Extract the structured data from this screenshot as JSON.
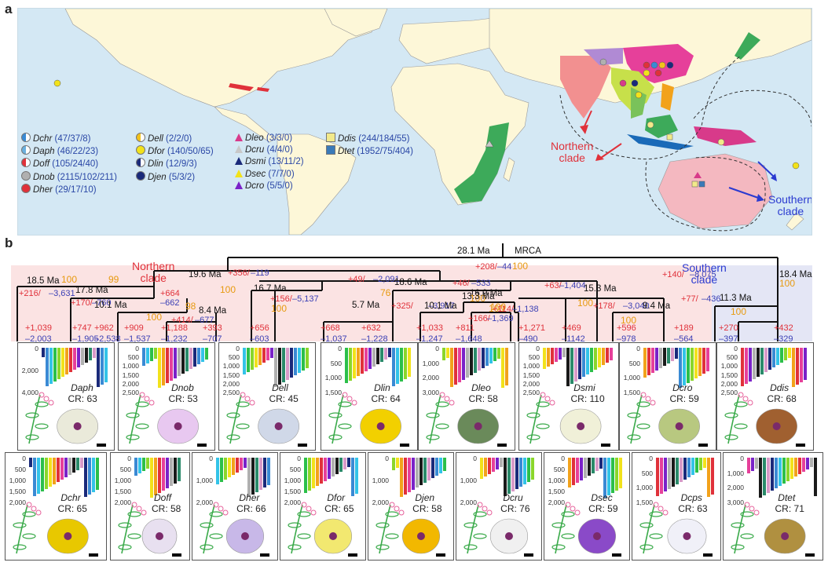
{
  "panels": {
    "a": "a",
    "b": "b"
  },
  "map_labels": {
    "northern": "Northern\nclade",
    "southern": "Southern\nclade"
  },
  "legend": [
    {
      "code": "Dchr",
      "counts": "(47/37/8)",
      "color": "#3a8ad4",
      "shape": "half"
    },
    {
      "code": "Daph",
      "counts": "(46/22/23)",
      "color": "#6ab0de",
      "shape": "half"
    },
    {
      "code": "Doff",
      "counts": "(105/24/40)",
      "color": "#e0313a",
      "shape": "half"
    },
    {
      "code": "Dnob",
      "counts": "(2115/102/211)",
      "color": "#b0b0b0",
      "shape": "circle"
    },
    {
      "code": "Dher",
      "counts": "(29/17/10)",
      "color": "#e0313a",
      "shape": "circle"
    },
    {
      "code": "Dell",
      "counts": "(2/2/0)",
      "color": "#f2c21b",
      "shape": "half"
    },
    {
      "code": "Dfor",
      "counts": "(140/50/65)",
      "color": "#f2e21b",
      "shape": "circle"
    },
    {
      "code": "Dlin",
      "counts": "(12/9/3)",
      "color": "#1a2a7a",
      "shape": "half"
    },
    {
      "code": "Djen",
      "counts": "(5/3/2)",
      "color": "#1a2a7a",
      "shape": "circle"
    },
    {
      "code": "Dleo",
      "counts": "(3/3/0)",
      "color": "#d83a8a",
      "shape": "tri"
    },
    {
      "code": "Dcru",
      "counts": "(4/4/0)",
      "color": "#c8c8c8",
      "shape": "tri"
    },
    {
      "code": "Dsmi",
      "counts": "(13/11/2)",
      "color": "#1a2a7a",
      "shape": "tri"
    },
    {
      "code": "Dsec",
      "counts": "(7/7/0)",
      "color": "#f2e21b",
      "shape": "tri"
    },
    {
      "code": "Dcro",
      "counts": "(5/5/0)",
      "color": "#7a22c8",
      "shape": "tri"
    },
    {
      "code": "Ddis",
      "counts": "(244/184/55)",
      "color": "#f2e98a",
      "shape": "square"
    },
    {
      "code": "Dtet",
      "counts": "(1952/75/404)",
      "color": "#3a7ab8",
      "shape": "square"
    }
  ],
  "tree": {
    "root_age": "28.1 Ma",
    "mrca": "MRCA",
    "root_gain": "+208/",
    "root_loss": "–44",
    "root_support": "100",
    "clade_north": "Northern\nclade",
    "clade_south": "Southern\nclade",
    "labels": [
      {
        "t": "18.5 Ma",
        "c": "age"
      },
      {
        "t": "100",
        "c": "org"
      },
      {
        "t": "99",
        "c": "org"
      },
      {
        "t": "+216/",
        "c": "red"
      },
      {
        "t": "–3,631",
        "c": "blue"
      },
      {
        "t": "17.8 Ma",
        "c": "age"
      },
      {
        "t": "+170/",
        "c": "red"
      },
      {
        "t": "–760",
        "c": "blue"
      },
      {
        "t": "19.6 Ma",
        "c": "age"
      },
      {
        "t": "+356/",
        "c": "red"
      },
      {
        "t": "–119",
        "c": "blue"
      },
      {
        "t": "100",
        "c": "org"
      },
      {
        "t": "10.1 Ma",
        "c": "age"
      },
      {
        "t": "+664",
        "c": "red"
      },
      {
        "t": "–662",
        "c": "blue"
      },
      {
        "t": "98",
        "c": "org"
      },
      {
        "t": "8.4 Ma",
        "c": "age"
      },
      {
        "t": "100",
        "c": "org"
      },
      {
        "t": "+414/",
        "c": "red"
      },
      {
        "t": "–677",
        "c": "blue"
      },
      {
        "t": "16.7 Ma",
        "c": "age"
      },
      {
        "t": "+156/",
        "c": "red"
      },
      {
        "t": "–5,137",
        "c": "blue"
      },
      {
        "t": "100",
        "c": "org"
      },
      {
        "t": "+49/",
        "c": "red"
      },
      {
        "t": "–2,091",
        "c": "blue"
      },
      {
        "t": "18.6 Ma",
        "c": "age"
      },
      {
        "t": "76",
        "c": "org"
      },
      {
        "t": "5.7 Ma",
        "c": "age"
      },
      {
        "t": "+46/",
        "c": "red"
      },
      {
        "t": "–533",
        "c": "blue"
      },
      {
        "t": "16.9 Ma",
        "c": "age"
      },
      {
        "t": "+325/",
        "c": "red"
      },
      {
        "t": "–3,917",
        "c": "blue"
      },
      {
        "t": "100",
        "c": "org"
      },
      {
        "t": "10.1 Ma",
        "c": "age"
      },
      {
        "t": "13.3 Ma",
        "c": "age"
      },
      {
        "t": "100",
        "c": "org"
      },
      {
        "t": "+166/",
        "c": "red"
      },
      {
        "t": "–1,369",
        "c": "blue"
      },
      {
        "t": "100",
        "c": "org"
      },
      {
        "t": "+114/",
        "c": "red"
      },
      {
        "t": "–1,138",
        "c": "blue"
      },
      {
        "t": "+63/",
        "c": "red"
      },
      {
        "t": "–1,404",
        "c": "blue"
      },
      {
        "t": "15.3 Ma",
        "c": "age"
      },
      {
        "t": "100",
        "c": "org"
      },
      {
        "t": "+178/",
        "c": "red"
      },
      {
        "t": "–3,040",
        "c": "blue"
      },
      {
        "t": "9.4 Ma",
        "c": "age"
      },
      {
        "t": "100",
        "c": "org"
      },
      {
        "t": "+140/",
        "c": "red"
      },
      {
        "t": "–8,075",
        "c": "blue"
      },
      {
        "t": "18.4 Ma",
        "c": "age"
      },
      {
        "t": "100",
        "c": "org"
      },
      {
        "t": "+77/",
        "c": "red"
      },
      {
        "t": "–436",
        "c": "blue"
      },
      {
        "t": "11.3 Ma",
        "c": "age"
      },
      {
        "t": "100",
        "c": "org"
      }
    ],
    "tips": [
      {
        "g": "+1,039",
        "l": "–2,003"
      },
      {
        "g": "+747",
        "l": "–1,905"
      },
      {
        "g": "+962",
        "l": "–2,538"
      },
      {
        "g": "+909",
        "l": "–1,537"
      },
      {
        "g": "+1,188",
        "l": "–1,232"
      },
      {
        "g": "+393",
        "l": "–707"
      },
      {
        "g": "+656",
        "l": "–603"
      },
      {
        "g": "+668",
        "l": "–1,037"
      },
      {
        "g": "+632",
        "l": "–1,228"
      },
      {
        "g": "+1,033",
        "l": "–1,247"
      },
      {
        "g": "+811",
        "l": "–1,648"
      },
      {
        "g": "+1,271",
        "l": "–490"
      },
      {
        "g": "+469",
        "l": "–1142"
      },
      {
        "g": "+596",
        "l": "–978"
      },
      {
        "g": "+189",
        "l": "–564"
      },
      {
        "g": "+270",
        "l": "–397"
      },
      {
        "g": "+432",
        "l": "–329"
      }
    ]
  },
  "cards_top": [
    {
      "sp": "Daph",
      "cr": "CR: 63",
      "ticks": [
        "0",
        "2,000",
        "4,000"
      ]
    },
    {
      "sp": "Dnob",
      "cr": "CR: 53",
      "ticks": [
        "0",
        "500",
        "1,000",
        "1,500",
        "2,000",
        "2,500"
      ]
    },
    {
      "sp": "Dell",
      "cr": "CR: 45",
      "ticks": [
        "0",
        "500",
        "1,000",
        "1,500",
        "2,000",
        "2,500"
      ]
    },
    {
      "sp": "Dlin",
      "cr": "CR: 64",
      "ticks": [
        "0",
        "500",
        "1,000",
        "1,500"
      ]
    },
    {
      "sp": "Dleo",
      "cr": "CR: 58",
      "ticks": [
        "0",
        "1,000",
        "2,000",
        "3,000"
      ]
    },
    {
      "sp": "Dsmi",
      "cr": "CR: 110",
      "ticks": [
        "0",
        "500",
        "1,000",
        "1,500",
        "2,000",
        "2,500"
      ]
    },
    {
      "sp": "Dcro",
      "cr": "CR: 59",
      "ticks": [
        "0",
        "500",
        "1,000",
        "1,500"
      ]
    },
    {
      "sp": "Ddis",
      "cr": "CR: 68",
      "ticks": [
        "0",
        "500",
        "1,000",
        "1,500",
        "2,000",
        "2,500"
      ]
    }
  ],
  "cards_bottom": [
    {
      "sp": "Dchr",
      "cr": "CR: 65",
      "ticks": [
        "0",
        "500",
        "1,000",
        "1,500",
        "2,000"
      ]
    },
    {
      "sp": "Doff",
      "cr": "CR: 58",
      "ticks": [
        "0",
        "500",
        "1,000",
        "1,500",
        "2,000"
      ]
    },
    {
      "sp": "Dher",
      "cr": "CR: 66",
      "ticks": [
        "0",
        "1,000",
        "2,000"
      ]
    },
    {
      "sp": "Dfor",
      "cr": "CR: 65",
      "ticks": [
        "0",
        "500",
        "1,000",
        "1,500",
        "2,000"
      ]
    },
    {
      "sp": "Djen",
      "cr": "CR: 58",
      "ticks": [
        "0",
        "1,000",
        "2,000"
      ]
    },
    {
      "sp": "Dcru",
      "cr": "CR: 76",
      "ticks": [
        "0",
        "1,000",
        "2,000"
      ]
    },
    {
      "sp": "Dsec",
      "cr": "CR: 59",
      "ticks": [
        "0",
        "500",
        "1,000",
        "1,500",
        "2,000"
      ]
    },
    {
      "sp": "Dcps",
      "cr": "CR: 63",
      "ticks": [
        "0",
        "500",
        "1,000",
        "1,500"
      ]
    },
    {
      "sp": "Dtet",
      "cr": "CR: 71",
      "ticks": [
        "0",
        "1,000",
        "2,000",
        "3,000"
      ]
    }
  ],
  "bar_colors": [
    "#1a2a7a",
    "#3a8ad4",
    "#33c3e8",
    "#2bbf4a",
    "#8ad62a",
    "#f2e21b",
    "#f2a21b",
    "#e0313a",
    "#e6409a",
    "#7a22c8",
    "#b0b0b0",
    "#1a1a1a",
    "#2a8a6a",
    "#d89ac8"
  ]
}
